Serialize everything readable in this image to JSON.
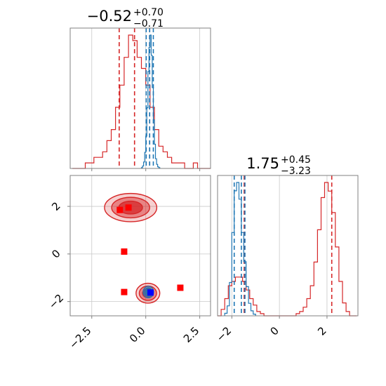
{
  "chart_data": {
    "type": "corner",
    "colors": {
      "series_a": "#d62728",
      "series_b": "#1f77b4",
      "marker_red": "#ff0000",
      "marker_blue": "#0000ff"
    },
    "grid": true,
    "parameters": [
      {
        "range": [
          -3.5,
          3.0
        ],
        "ticks": [
          -2.5,
          0.0,
          2.5
        ],
        "tick_labels": [
          "−2.5",
          "0.0",
          "2.5"
        ]
      },
      {
        "range": [
          -2.6,
          3.3
        ],
        "ticks": [
          -2,
          0,
          2
        ],
        "tick_labels": [
          "−2",
          "0",
          "2"
        ]
      }
    ],
    "panels": [
      {
        "type": "histogram",
        "param": 0,
        "title": {
          "median": "−0.52",
          "plus": "+0.70",
          "minus": "−0.71"
        },
        "series": [
          {
            "name": "",
            "color": "#d62728",
            "bin_edges": [
              -3.4,
              -3.2,
              -3.0,
              -2.8,
              -2.6,
              -2.4,
              -2.2,
              -2.0,
              -1.8,
              -1.6,
              -1.4,
              -1.2,
              -1.0,
              -0.8,
              -0.6,
              -0.4,
              -0.2,
              0.0,
              0.2,
              0.4,
              0.6,
              0.8,
              1.0,
              1.2,
              1.4,
              1.6,
              1.8,
              2.0,
              2.2,
              2.4,
              2.6,
              2.8,
              3.0
            ],
            "counts": [
              0,
              0,
              0,
              1,
              1,
              2,
              2,
              3,
              5,
              7,
              11,
              15,
              20,
              24,
              23,
              20,
              18,
              15,
              11,
              7,
              4,
              3,
              2,
              1,
              1,
              1,
              0,
              0,
              1,
              0,
              0,
              0
            ],
            "quantile_lines": [
              -1.23,
              -0.52,
              0.18
            ]
          },
          {
            "name": "",
            "color": "#1f77b4",
            "bin_edges": [
              -0.2,
              -0.15,
              -0.1,
              -0.05,
              0.0,
              0.05,
              0.1,
              0.15,
              0.2,
              0.25,
              0.3,
              0.35,
              0.4,
              0.45,
              0.5,
              0.55,
              0.6,
              0.65
            ],
            "counts": [
              1,
              3,
              8,
              20,
              40,
              75,
              120,
              150,
              165,
              140,
              100,
              60,
              30,
              12,
              5,
              2,
              1
            ],
            "quantile_lines": [
              0.02,
              0.18,
              0.35
            ]
          }
        ]
      },
      {
        "type": "histogram",
        "param": 1,
        "title": {
          "median": "1.75",
          "plus": "+0.45",
          "minus": "−3.23"
        },
        "series": [
          {
            "name": "",
            "color": "#d62728",
            "bin_edges": [
              -2.6,
              -2.45,
              -2.3,
              -2.15,
              -2.0,
              -1.85,
              -1.7,
              -1.55,
              -1.4,
              -1.25,
              -1.1,
              -0.95,
              -0.8,
              -0.65,
              -0.5,
              -0.35,
              -0.2,
              -0.05,
              0.1,
              0.25,
              0.4,
              0.55,
              0.7,
              0.85,
              1.0,
              1.15,
              1.3,
              1.45,
              1.6,
              1.75,
              1.9,
              2.05,
              2.2,
              2.35,
              2.5,
              2.65,
              2.8,
              2.95,
              3.1,
              3.25
            ],
            "counts": [
              0,
              3,
              8,
              14,
              16,
              18,
              18,
              16,
              12,
              8,
              5,
              2,
              1,
              0,
              0,
              0,
              0,
              0,
              0,
              0,
              0,
              0,
              1,
              2,
              4,
              8,
              14,
              25,
              40,
              55,
              62,
              58,
              48,
              32,
              16,
              6,
              2,
              0,
              0
            ],
            "quantile_lines": [
              -1.48,
              2.2
            ]
          },
          {
            "name": "",
            "color": "#1f77b4",
            "bin_edges": [
              -2.3,
              -2.2,
              -2.1,
              -2.0,
              -1.9,
              -1.8,
              -1.7,
              -1.6,
              -1.5,
              -1.4,
              -1.3,
              -1.2,
              -1.1,
              -1.0
            ],
            "counts": [
              3,
              12,
              40,
              100,
              150,
              160,
              140,
              100,
              65,
              35,
              15,
              6,
              2
            ],
            "quantile_lines": [
              -1.9,
              -1.6,
              -1.45
            ]
          }
        ]
      },
      {
        "type": "density2d",
        "x_param": 0,
        "y_param": 1,
        "clusters": [
          {
            "color": "#d62728",
            "center": [
              -0.7,
              1.95
            ],
            "sigma": [
              0.55,
              0.27
            ]
          },
          {
            "color": "#d62728",
            "center": [
              0.1,
              -1.65
            ],
            "sigma": [
              0.25,
              0.19
            ]
          },
          {
            "color": "#1f77b4",
            "center": [
              0.12,
              -1.6
            ],
            "sigma": [
              0.11,
              0.11
            ]
          }
        ],
        "markers": [
          {
            "x": -1.2,
            "y": 1.85,
            "color": "#ff0000"
          },
          {
            "x": -0.8,
            "y": 1.95,
            "color": "#ff0000"
          },
          {
            "x": -1.0,
            "y": 0.1,
            "color": "#ff0000"
          },
          {
            "x": -1.0,
            "y": -1.6,
            "color": "#ff0000"
          },
          {
            "x": 1.6,
            "y": -1.42,
            "color": "#ff0000"
          },
          {
            "x": 0.22,
            "y": -1.62,
            "color": "#0000ff"
          }
        ]
      }
    ]
  }
}
